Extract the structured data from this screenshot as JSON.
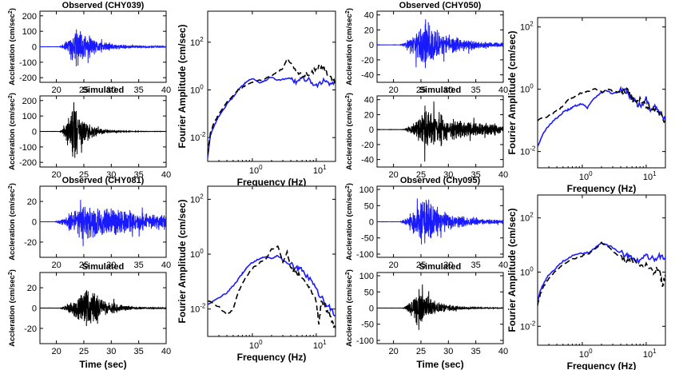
{
  "chart_data": [
    {
      "id": "chy039_obs",
      "type": "line",
      "title": "Observed (CHY039)",
      "ylabel": "Accleration (cm/sec²)",
      "xlabel": "",
      "xlim": [
        17,
        40
      ],
      "ylim": [
        -230,
        230
      ],
      "xticks": [
        20,
        25,
        30,
        35,
        40
      ],
      "yticks": [
        -200,
        -100,
        0,
        100,
        200
      ],
      "signal": {
        "amp": 170,
        "onset": 20.5,
        "peak": 23.6,
        "decay": 3.2,
        "tail": 0.03,
        "seed": 11
      },
      "series": [
        {
          "color": "#1a1aff"
        }
      ]
    },
    {
      "id": "chy039_sim",
      "type": "line",
      "title": "Simulated",
      "ylabel": "Accleration (cm/sec²)",
      "xlabel": "",
      "xlim": [
        17,
        40
      ],
      "ylim": [
        -230,
        230
      ],
      "xticks": [
        20,
        25,
        30,
        35,
        40
      ],
      "yticks": [
        -200,
        -100,
        0,
        100,
        200
      ],
      "signal": {
        "amp": 210,
        "onset": 20.5,
        "peak": 23.2,
        "decay": 2.3,
        "tail": 0.005,
        "seed": 12
      },
      "series": [
        {
          "color": "#000000"
        }
      ]
    },
    {
      "id": "chy081_obs",
      "type": "line",
      "title": "Observed (CHY081)",
      "ylabel": "Accleration (cm/sec²)",
      "xlabel": "",
      "xlim": [
        17,
        40
      ],
      "ylim": [
        -35,
        35
      ],
      "xticks": [
        20,
        25,
        30,
        35,
        40
      ],
      "yticks": [
        -20,
        0,
        20
      ],
      "signal": {
        "amp": 22,
        "onset": 19.5,
        "peak": 24.5,
        "decay": 7.5,
        "tail": 0.3,
        "seed": 21
      },
      "series": [
        {
          "color": "#1a1aff"
        }
      ]
    },
    {
      "id": "chy081_sim",
      "type": "line",
      "title": "Simulated",
      "ylabel": "Accleration (cm/sec²)",
      "xlabel": "Time (sec)",
      "xlim": [
        17,
        40
      ],
      "ylim": [
        -35,
        35
      ],
      "xticks": [
        20,
        25,
        30,
        35,
        40
      ],
      "yticks": [
        -20,
        0,
        20
      ],
      "signal": {
        "amp": 28,
        "onset": 20.5,
        "peak": 25.5,
        "decay": 3.2,
        "tail": 0.01,
        "seed": 22
      },
      "series": [
        {
          "color": "#000000"
        }
      ]
    },
    {
      "id": "chy050_obs",
      "type": "line",
      "title": "Observed (CHY050)",
      "ylabel": "Accleration (cm/sec²)",
      "xlabel": "",
      "xlim": [
        17,
        40
      ],
      "ylim": [
        -50,
        45
      ],
      "xticks": [
        20,
        25,
        30,
        35,
        40
      ],
      "yticks": [
        -40,
        -20,
        0,
        20,
        40
      ],
      "signal": {
        "amp": 40,
        "onset": 21,
        "peak": 25.5,
        "decay": 3.8,
        "tail": 0.08,
        "seed": 31
      },
      "series": [
        {
          "color": "#1a1aff"
        }
      ]
    },
    {
      "id": "chy050_sim",
      "type": "line",
      "title": "Simulated",
      "ylabel": "Accleration (cm/sec²)",
      "xlabel": "",
      "xlim": [
        17,
        40
      ],
      "ylim": [
        -50,
        45
      ],
      "xticks": [
        20,
        25,
        30,
        35,
        40
      ],
      "yticks": [
        -40,
        -20,
        0,
        20,
        40
      ],
      "signal": {
        "amp": 33,
        "onset": 21.5,
        "peak": 26,
        "decay": 5.5,
        "tail": 0.15,
        "seed": 32
      },
      "series": [
        {
          "color": "#000000"
        }
      ]
    },
    {
      "id": "chy095_obs",
      "type": "line",
      "title": "Observed (Chy095)",
      "ylabel": "Accleration (cm/sec²)",
      "xlabel": "",
      "xlim": [
        17,
        40
      ],
      "ylim": [
        -110,
        110
      ],
      "xticks": [
        20,
        25,
        30,
        35,
        40
      ],
      "yticks": [
        -100,
        -50,
        0,
        50,
        100
      ],
      "signal": {
        "amp": 100,
        "onset": 21,
        "peak": 25.5,
        "decay": 3.5,
        "tail": 0.06,
        "seed": 41
      },
      "series": [
        {
          "color": "#1a1aff"
        }
      ]
    },
    {
      "id": "chy095_sim",
      "type": "line",
      "title": "Simulated",
      "ylabel": "Accleration (cm/sec²)",
      "xlabel": "Time (sec)",
      "xlim": [
        17,
        40
      ],
      "ylim": [
        -110,
        110
      ],
      "xticks": [
        20,
        25,
        30,
        35,
        40
      ],
      "yticks": [
        -100,
        -50,
        0,
        50,
        100
      ],
      "signal": {
        "amp": 75,
        "onset": 21.5,
        "peak": 24.8,
        "decay": 3,
        "tail": 0.01,
        "seed": 42
      },
      "series": [
        {
          "color": "#000000"
        }
      ]
    },
    {
      "id": "fas_chy039",
      "type": "line",
      "title": "",
      "log_scale": true,
      "xlabel": "Frequency (Hz)",
      "ylabel": "Fourier Amplitude (cm/sec)",
      "xlim": [
        0.2,
        20
      ],
      "ylim": [
        0.001,
        2000
      ],
      "xticks": [
        1,
        10
      ],
      "yticks": [
        0.01,
        1,
        100
      ],
      "series": [
        {
          "color": "#1a1aff",
          "dash": "",
          "points": [
            [
              0.2,
              0.0015
            ],
            [
              0.22,
              0.012
            ],
            [
              0.25,
              0.03
            ],
            [
              0.3,
              0.08
            ],
            [
              0.4,
              0.25
            ],
            [
              0.5,
              0.5
            ],
            [
              0.6,
              1.0
            ],
            [
              0.7,
              1.5
            ],
            [
              0.8,
              2.2
            ],
            [
              1.0,
              3.0
            ],
            [
              1.3,
              2.0
            ],
            [
              1.6,
              2.5
            ],
            [
              2.0,
              3.5
            ],
            [
              2.5,
              2.5
            ],
            [
              3.0,
              2.8
            ],
            [
              4.0,
              3.0
            ],
            [
              5.0,
              2.0
            ],
            [
              6.0,
              3.0
            ],
            [
              8.0,
              2.5
            ],
            [
              10.0,
              1.5
            ],
            [
              13.0,
              2.5
            ],
            [
              16.0,
              1.8
            ],
            [
              20.0,
              2.2
            ]
          ]
        },
        {
          "color": "#000000",
          "dash": "7,4",
          "points": [
            [
              0.2,
              0.002
            ],
            [
              0.22,
              0.015
            ],
            [
              0.25,
              0.04
            ],
            [
              0.3,
              0.1
            ],
            [
              0.4,
              0.3
            ],
            [
              0.5,
              0.6
            ],
            [
              0.6,
              1.0
            ],
            [
              0.7,
              1.3
            ],
            [
              0.8,
              1.6
            ],
            [
              1.0,
              2.0
            ],
            [
              1.3,
              2.5
            ],
            [
              1.6,
              3.0
            ],
            [
              2.0,
              4.0
            ],
            [
              2.5,
              6.0
            ],
            [
              3.0,
              8.0
            ],
            [
              3.5,
              20.0
            ],
            [
              4.0,
              12.0
            ],
            [
              5.0,
              6.0
            ],
            [
              6.0,
              4.0
            ],
            [
              8.0,
              5.0
            ],
            [
              10.0,
              8.0
            ],
            [
              12.0,
              10.0
            ],
            [
              14.0,
              6.0
            ],
            [
              17.0,
              3.0
            ],
            [
              20.0,
              2.0
            ]
          ]
        }
      ]
    },
    {
      "id": "fas_chy081",
      "type": "line",
      "title": "",
      "log_scale": true,
      "xlabel": "Frequency (Hz)",
      "ylabel": "Fourier Amplitude (cm/sec)",
      "xlim": [
        0.2,
        20
      ],
      "ylim": [
        0.001,
        300
      ],
      "xticks": [
        1,
        10
      ],
      "yticks": [
        0.01,
        1,
        100
      ],
      "series": [
        {
          "color": "#1a1aff",
          "dash": "",
          "points": [
            [
              0.2,
              0.015
            ],
            [
              0.3,
              0.025
            ],
            [
              0.4,
              0.04
            ],
            [
              0.5,
              0.07
            ],
            [
              0.6,
              0.12
            ],
            [
              0.7,
              0.2
            ],
            [
              0.8,
              0.3
            ],
            [
              1.0,
              0.5
            ],
            [
              1.3,
              0.7
            ],
            [
              1.6,
              0.8
            ],
            [
              2.0,
              0.7
            ],
            [
              2.5,
              0.9
            ],
            [
              3.0,
              0.6
            ],
            [
              4.0,
              0.4
            ],
            [
              5.0,
              0.3
            ],
            [
              6.0,
              0.25
            ],
            [
              8.0,
              0.12
            ],
            [
              10.0,
              0.05
            ],
            [
              13.0,
              0.02
            ],
            [
              16.0,
              0.012
            ],
            [
              20.0,
              0.006
            ]
          ]
        },
        {
          "color": "#000000",
          "dash": "7,4",
          "points": [
            [
              0.2,
              0.02
            ],
            [
              0.3,
              0.012
            ],
            [
              0.4,
              0.006
            ],
            [
              0.5,
              0.01
            ],
            [
              0.6,
              0.04
            ],
            [
              0.7,
              0.09
            ],
            [
              0.8,
              0.15
            ],
            [
              1.0,
              0.3
            ],
            [
              1.3,
              0.5
            ],
            [
              1.6,
              0.6
            ],
            [
              2.0,
              1.5
            ],
            [
              2.5,
              2.0
            ],
            [
              3.0,
              0.5
            ],
            [
              3.5,
              1.2
            ],
            [
              4.0,
              0.3
            ],
            [
              5.0,
              0.2
            ],
            [
              6.0,
              0.12
            ],
            [
              8.0,
              0.06
            ],
            [
              10.0,
              0.02
            ],
            [
              11.0,
              0.003
            ],
            [
              12.0,
              0.02
            ],
            [
              15.0,
              0.009
            ],
            [
              18.0,
              0.003
            ],
            [
              20.0,
              0.002
            ]
          ]
        }
      ]
    },
    {
      "id": "fas_chy050",
      "type": "line",
      "title": "",
      "log_scale": true,
      "xlabel": "Frequency (Hz)",
      "ylabel": "Fourier Amplitude (cm/sec)",
      "xlim": [
        0.2,
        20
      ],
      "ylim": [
        0.003,
        200
      ],
      "xticks": [
        1,
        10
      ],
      "yticks": [
        0.01,
        1,
        100
      ],
      "series": [
        {
          "color": "#1a1aff",
          "dash": "",
          "points": [
            [
              0.2,
              0.015
            ],
            [
              0.25,
              0.04
            ],
            [
              0.3,
              0.07
            ],
            [
              0.4,
              0.12
            ],
            [
              0.5,
              0.18
            ],
            [
              0.6,
              0.22
            ],
            [
              0.7,
              0.26
            ],
            [
              0.8,
              0.3
            ],
            [
              1.0,
              0.35
            ],
            [
              1.2,
              0.25
            ],
            [
              1.5,
              0.5
            ],
            [
              2.0,
              0.8
            ],
            [
              2.5,
              0.9
            ],
            [
              3.0,
              0.7
            ],
            [
              4.0,
              0.9
            ],
            [
              5.0,
              0.8
            ],
            [
              6.0,
              0.5
            ],
            [
              7.0,
              0.35
            ],
            [
              8.0,
              0.3
            ],
            [
              10.0,
              0.5
            ],
            [
              12.0,
              0.2
            ],
            [
              14.0,
              0.3
            ],
            [
              17.0,
              0.15
            ],
            [
              20.0,
              0.1
            ]
          ]
        },
        {
          "color": "#000000",
          "dash": "7,4",
          "points": [
            [
              0.2,
              0.1
            ],
            [
              0.3,
              0.14
            ],
            [
              0.4,
              0.2
            ],
            [
              0.5,
              0.3
            ],
            [
              0.6,
              0.45
            ],
            [
              0.7,
              0.55
            ],
            [
              0.8,
              0.6
            ],
            [
              1.0,
              0.8
            ],
            [
              1.3,
              0.9
            ],
            [
              1.6,
              1.0
            ],
            [
              2.0,
              0.8
            ],
            [
              2.5,
              1.0
            ],
            [
              3.0,
              0.9
            ],
            [
              4.0,
              0.8
            ],
            [
              5.0,
              1.0
            ],
            [
              6.0,
              0.5
            ],
            [
              7.0,
              0.35
            ],
            [
              8.0,
              0.5
            ],
            [
              10.0,
              0.3
            ],
            [
              12.0,
              0.25
            ],
            [
              15.0,
              0.2
            ],
            [
              20.0,
              0.1
            ]
          ]
        }
      ]
    },
    {
      "id": "fas_chy095",
      "type": "line",
      "title": "",
      "log_scale": true,
      "xlabel": "Frequency (Hz)",
      "ylabel": "Fourier Amplitude (cm/sec)",
      "xlim": [
        0.2,
        20
      ],
      "ylim": [
        0.002,
        700
      ],
      "xticks": [
        1,
        10
      ],
      "yticks": [
        0.01,
        1,
        100
      ],
      "series": [
        {
          "color": "#1a1aff",
          "dash": "",
          "points": [
            [
              0.2,
              0.08
            ],
            [
              0.22,
              0.2
            ],
            [
              0.25,
              0.4
            ],
            [
              0.3,
              0.8
            ],
            [
              0.4,
              1.5
            ],
            [
              0.5,
              2.5
            ],
            [
              0.7,
              4.0
            ],
            [
              1.0,
              5.0
            ],
            [
              1.3,
              5.5
            ],
            [
              1.6,
              8.0
            ],
            [
              2.0,
              12.0
            ],
            [
              2.5,
              10.0
            ],
            [
              3.0,
              8.0
            ],
            [
              4.0,
              5.0
            ],
            [
              5.0,
              4.0
            ],
            [
              6.0,
              3.0
            ],
            [
              8.0,
              2.5
            ],
            [
              10.0,
              4.0
            ],
            [
              13.0,
              3.0
            ],
            [
              16.0,
              4.0
            ],
            [
              20.0,
              3.5
            ]
          ]
        },
        {
          "color": "#000000",
          "dash": "7,4",
          "points": [
            [
              0.2,
              0.06
            ],
            [
              0.22,
              0.15
            ],
            [
              0.25,
              0.3
            ],
            [
              0.3,
              0.6
            ],
            [
              0.4,
              1.2
            ],
            [
              0.5,
              2.0
            ],
            [
              0.7,
              3.0
            ],
            [
              1.0,
              4.0
            ],
            [
              1.3,
              5.0
            ],
            [
              1.6,
              7.0
            ],
            [
              2.0,
              12.0
            ],
            [
              2.5,
              9.0
            ],
            [
              3.0,
              6.0
            ],
            [
              4.0,
              3.5
            ],
            [
              5.0,
              2.5
            ],
            [
              6.0,
              3.0
            ],
            [
              8.0,
              1.5
            ],
            [
              10.0,
              2.0
            ],
            [
              13.0,
              1.0
            ],
            [
              16.0,
              1.5
            ],
            [
              18.0,
              0.3
            ],
            [
              20.0,
              0.8
            ]
          ]
        }
      ]
    }
  ]
}
